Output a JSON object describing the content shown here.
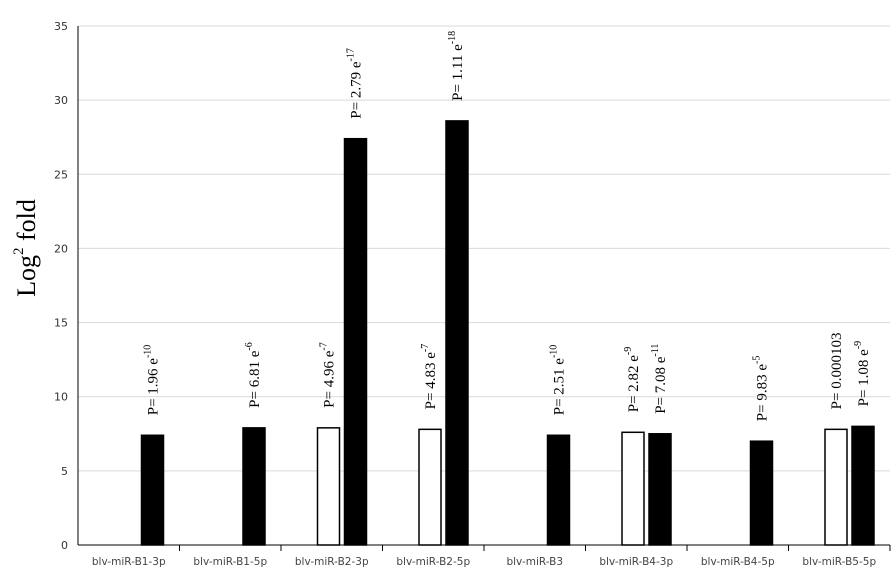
{
  "chart_data": {
    "type": "bar",
    "ylabel": {
      "base": "Log",
      "sup": "2",
      "rest": " fold"
    },
    "ylim": [
      0,
      35
    ],
    "yticks": [
      0,
      5,
      10,
      15,
      20,
      25,
      30,
      35
    ],
    "grid": true,
    "categories": [
      "blv-miR-B1-3p",
      "blv-miR-B1-5p",
      "blv-miR-B2-3p",
      "blv-miR-B2-5p",
      "blv-miR-B3",
      "blv-miR-B4-3p",
      "blv-miR-B4-5p",
      "blv-miR-B5-5p"
    ],
    "series": [
      {
        "fill": "#ffffff",
        "stroke": "#000000",
        "values": [
          null,
          null,
          7.9,
          7.8,
          null,
          7.6,
          null,
          7.8
        ],
        "labels": [
          null,
          null,
          {
            "base": "P= 4.96 e",
            "exp": "-7"
          },
          {
            "base": "P= 4.83 e",
            "exp": "-7"
          },
          null,
          {
            "base": "P= 2.82 e",
            "exp": "-9"
          },
          null,
          {
            "base": "P= 0.000103",
            "exp": ""
          }
        ]
      },
      {
        "fill": "#000000",
        "stroke": "#000000",
        "values": [
          7.4,
          7.9,
          27.4,
          28.6,
          7.4,
          7.5,
          7.0,
          8.0
        ],
        "labels": [
          {
            "base": "P= 1.96 e",
            "exp": "-10"
          },
          {
            "base": "P= 6.81 e",
            "exp": "-6"
          },
          {
            "base": "P= 2.79 e",
            "exp": "-17"
          },
          {
            "base": "P= 1.11 e",
            "exp": "-18"
          },
          {
            "base": "P= 2.51 e",
            "exp": "-10"
          },
          {
            "base": "P= 7.08 e",
            "exp": "-11"
          },
          {
            "base": "P= 9.83 e",
            "exp": "-5"
          },
          {
            "base": "P= 1.08 e",
            "exp": "-9"
          }
        ]
      }
    ]
  }
}
